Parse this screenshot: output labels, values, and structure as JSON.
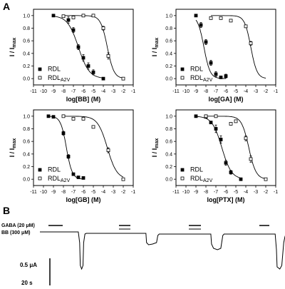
{
  "panels": {
    "a": "A",
    "b": "B"
  },
  "axes_common": {
    "ylabel_main": "I / I",
    "ylabel_sub": "max",
    "yticks": [
      "0.0",
      "0.2",
      "0.4",
      "0.6",
      "0.8",
      "1.0"
    ],
    "xticks": [
      "-11",
      "-10",
      "-9",
      "-8",
      "-7",
      "-6",
      "-5",
      "-4",
      "-3",
      "-2",
      "-1"
    ]
  },
  "legend": {
    "rdl": "RDL",
    "mut_main": "RDL",
    "mut_sub": "A2V"
  },
  "chart_data": [
    {
      "type": "scatter",
      "xlabel": "log[BB] (M)",
      "ylabel": "I / Imax",
      "xlim": [
        -11,
        -1
      ],
      "ylim": [
        -0.1,
        1.1
      ],
      "legend_position": "bottom-left",
      "series": [
        {
          "name": "RDL",
          "marker": "filled-square",
          "points": [
            [
              -9,
              1.0
            ],
            [
              -7.5,
              0.93
            ],
            [
              -7,
              0.77
            ],
            [
              -6.5,
              0.5
            ],
            [
              -6,
              0.33
            ],
            [
              -5.5,
              0.2
            ],
            [
              -5,
              0.1
            ],
            [
              -4,
              0.0
            ]
          ],
          "errors": [
            0,
            0.05,
            0.04,
            0.04,
            0.05,
            0.05,
            0.04,
            0
          ],
          "fit_ic50_log": -6.5,
          "fit_hill": 0.8
        },
        {
          "name": "RDLA2V",
          "marker": "open-square",
          "points": [
            [
              -8,
              0.99
            ],
            [
              -7,
              0.97
            ],
            [
              -6,
              1.0
            ],
            [
              -5,
              1.0
            ],
            [
              -4,
              0.8
            ],
            [
              -3.5,
              0.36
            ],
            [
              -2,
              0.0
            ]
          ],
          "errors": [
            0,
            0,
            0,
            0,
            0.03,
            0.05,
            0
          ],
          "fit_ic50_log": -3.6,
          "fit_hill": 1.3
        }
      ]
    },
    {
      "type": "scatter",
      "xlabel": "log[GA] (M)",
      "ylabel": "I / Imax",
      "xlim": [
        -11,
        -1
      ],
      "ylim": [
        -0.1,
        1.1
      ],
      "legend_position": "bottom-left",
      "series": [
        {
          "name": "RDL",
          "marker": "filled-square",
          "points": [
            [
              -9,
              1.0
            ],
            [
              -8.5,
              0.85
            ],
            [
              -8,
              0.58
            ],
            [
              -7.5,
              0.25
            ],
            [
              -7,
              0.07
            ],
            [
              -6.5,
              0.02
            ],
            [
              -6,
              0.04
            ]
          ],
          "errors": [
            0,
            0.04,
            0.04,
            0.04,
            0.04,
            0.02,
            0.03
          ],
          "fit_ic50_log": -8.2,
          "fit_hill": 1.4
        },
        {
          "name": "RDLA2V",
          "marker": "open-square",
          "points": [
            [
              -7.5,
              0.96
            ],
            [
              -6.5,
              0.96
            ],
            [
              -5.5,
              0.92
            ],
            [
              -4,
              0.83
            ],
            [
              -3.5,
              0.56
            ]
          ],
          "errors": [
            0,
            0,
            0,
            0.02,
            0.03
          ],
          "fit_ic50_log": -3.5,
          "fit_hill": 1.4
        }
      ]
    },
    {
      "type": "scatter",
      "xlabel": "log[GB] (M)",
      "ylabel": "I / Imax",
      "xlim": [
        -11,
        -1
      ],
      "ylim": [
        -0.1,
        1.1
      ],
      "legend_position": "bottom-left",
      "series": [
        {
          "name": "RDL",
          "marker": "filled-square",
          "points": [
            [
              -9.5,
              1.0
            ],
            [
              -9,
              0.99
            ],
            [
              -8,
              0.73
            ],
            [
              -7.5,
              0.36
            ],
            [
              -7,
              0.08
            ],
            [
              -6.5,
              0.03
            ],
            [
              -6,
              0.02
            ]
          ],
          "errors": [
            0,
            0,
            0.03,
            0.03,
            0.02,
            0,
            0
          ],
          "fit_ic50_log": -7.7,
          "fit_hill": 1.5
        },
        {
          "name": "RDLA2V",
          "marker": "open-square",
          "points": [
            [
              -8,
              1.0
            ],
            [
              -7,
              0.96
            ],
            [
              -6,
              0.96
            ],
            [
              -5,
              0.83
            ],
            [
              -3.5,
              0.46
            ],
            [
              -2,
              0.0
            ]
          ],
          "errors": [
            0,
            0,
            0,
            0,
            0.04,
            0
          ],
          "fit_ic50_log": -3.6,
          "fit_hill": 0.9
        }
      ]
    },
    {
      "type": "scatter",
      "xlabel": "log[PTX] (M)",
      "ylabel": "I / Imax",
      "xlim": [
        -11,
        -1
      ],
      "ylim": [
        -0.1,
        1.1
      ],
      "legend_position": "bottom-left",
      "series": [
        {
          "name": "RDL",
          "marker": "filled-square",
          "points": [
            [
              -9,
              1.0
            ],
            [
              -8,
              0.99
            ],
            [
              -7.5,
              0.9
            ],
            [
              -7,
              0.8
            ],
            [
              -6.5,
              0.63
            ],
            [
              -6,
              0.26
            ],
            [
              -5.5,
              0.11
            ],
            [
              -4.5,
              0.0
            ]
          ],
          "errors": [
            0,
            0,
            0.02,
            0.06,
            0.06,
            0.04,
            0.03,
            0
          ],
          "fit_ic50_log": -6.4,
          "fit_hill": 0.9
        },
        {
          "name": "RDLA2V",
          "marker": "open-square",
          "points": [
            [
              -8,
              1.0
            ],
            [
              -7,
              1.0
            ],
            [
              -5.5,
              0.88
            ],
            [
              -5,
              0.92
            ],
            [
              -4,
              0.65
            ],
            [
              -3.5,
              0.32
            ],
            [
              -2,
              0.0
            ]
          ],
          "errors": [
            0,
            0,
            0,
            0,
            0.04,
            0.05,
            0
          ],
          "fit_ic50_log": -3.7,
          "fit_hill": 1.2
        }
      ]
    }
  ],
  "traces": {
    "gaba_label": "GABA (20 ",
    "bb_label": "BB (300 ",
    "mu": "μ",
    "unit_close": "M)",
    "scale_current": "0.5 ",
    "scale_current_unit": "A",
    "scale_time": "20 s",
    "responses": [
      {
        "t": 0,
        "amp": 1.0,
        "bb": false
      },
      {
        "t": 1,
        "amp": 0.2,
        "bb": true
      },
      {
        "t": 2,
        "amp": 0.3,
        "bb": true
      },
      {
        "t": 3,
        "amp": 1.0,
        "bb": false
      }
    ]
  }
}
